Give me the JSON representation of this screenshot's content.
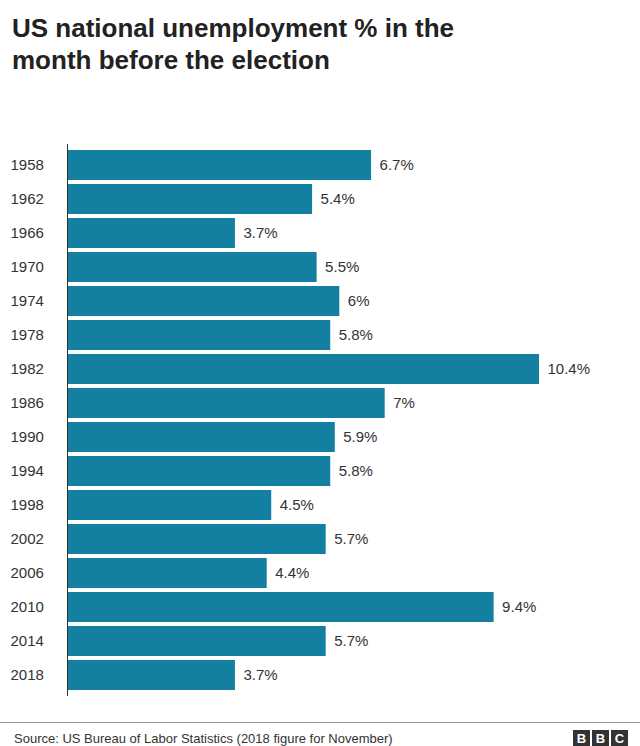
{
  "chart_data": {
    "type": "bar",
    "title": "US national unemployment % in the month before the election",
    "source": "Source: US Bureau of Labor Statistics (2018 figure for November)",
    "logo": "BBC",
    "orientation": "horizontal",
    "categories": [
      "1958",
      "1962",
      "1966",
      "1970",
      "1974",
      "1978",
      "1982",
      "1986",
      "1990",
      "1994",
      "1998",
      "2002",
      "2006",
      "2010",
      "2014",
      "2018"
    ],
    "values": [
      6.7,
      5.4,
      3.7,
      5.5,
      6,
      5.8,
      10.4,
      7,
      5.9,
      5.8,
      4.5,
      5.7,
      4.4,
      9.4,
      5.7,
      3.7
    ],
    "value_labels": [
      "6.7%",
      "5.4%",
      "3.7%",
      "5.5%",
      "6%",
      "5.8%",
      "10.4%",
      "7%",
      "5.9%",
      "5.8%",
      "4.5%",
      "5.7%",
      "4.4%",
      "9.4%",
      "5.7%",
      "3.7%"
    ],
    "color": "#1380a1",
    "xlim": [
      0,
      10.4
    ],
    "data_labels": true,
    "tick_labels": "y",
    "grid": false
  }
}
